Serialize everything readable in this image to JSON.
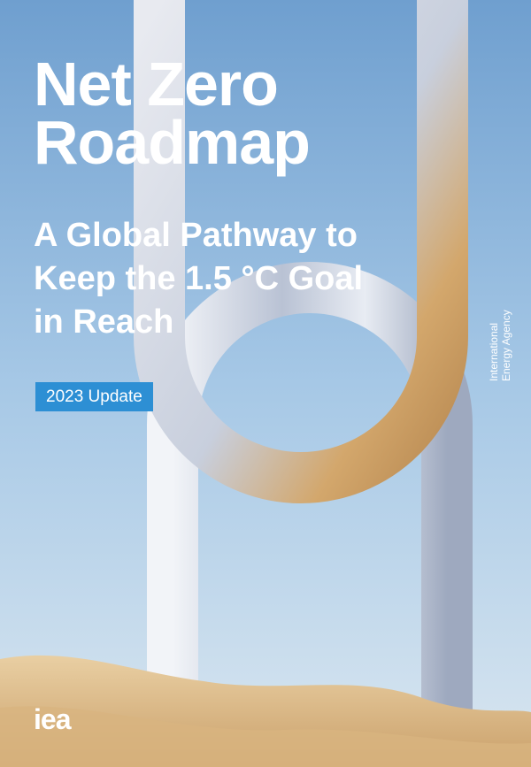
{
  "cover": {
    "title_lines": [
      "Net Zero",
      "Roadmap"
    ],
    "subtitle_lines": [
      "A Global Pathway to",
      "Keep the 1.5 °C Goal",
      "in Reach"
    ],
    "badge": "2023 Update",
    "agency_lines": [
      "International",
      "Energy Agency"
    ],
    "logo": "iea"
  }
}
